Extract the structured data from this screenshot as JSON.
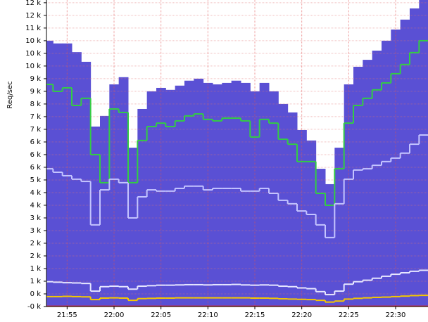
{
  "chart_data": {
    "type": "area",
    "ylabel": "Req/sec",
    "x": [
      1313,
      1314,
      1315,
      1316,
      1317,
      1318,
      1319,
      1320,
      1321,
      1322,
      1323,
      1324,
      1325,
      1326,
      1327,
      1328,
      1329,
      1330,
      1331,
      1332,
      1333,
      1334,
      1335,
      1336,
      1337,
      1338,
      1339,
      1340,
      1341,
      1342,
      1343,
      1344,
      1345,
      1346,
      1347,
      1348,
      1349,
      1350,
      1351,
      1352,
      1353
    ],
    "xlim": [
      1312.8,
      1353.45
    ],
    "xticks": [
      {
        "value": 1315,
        "label": "21:55"
      },
      {
        "value": 1320,
        "label": "22:00"
      },
      {
        "value": 1325,
        "label": "22:05"
      },
      {
        "value": 1330,
        "label": "22:10"
      },
      {
        "value": 1335,
        "label": "22:15"
      },
      {
        "value": 1340,
        "label": "22:20"
      },
      {
        "value": 1345,
        "label": "22:25"
      },
      {
        "value": 1350,
        "label": "22:30"
      }
    ],
    "ylim": [
      -100,
      12250
    ],
    "yticks": [
      {
        "value": -100,
        "label": "-0 k"
      },
      {
        "value": 410,
        "label": "0 k"
      },
      {
        "value": 920,
        "label": "1 k"
      },
      {
        "value": 1430,
        "label": "1 k"
      },
      {
        "value": 1940,
        "label": "2 k"
      },
      {
        "value": 2450,
        "label": "2 k"
      },
      {
        "value": 2960,
        "label": "3 k"
      },
      {
        "value": 3470,
        "label": "3 k"
      },
      {
        "value": 3980,
        "label": "4 k"
      },
      {
        "value": 4490,
        "label": "4 k"
      },
      {
        "value": 5000,
        "label": "5 k"
      },
      {
        "value": 5510,
        "label": "6 k"
      },
      {
        "value": 6020,
        "label": "6 k"
      },
      {
        "value": 6530,
        "label": "6 k"
      },
      {
        "value": 7040,
        "label": "7 k"
      },
      {
        "value": 7550,
        "label": "7 k"
      },
      {
        "value": 8060,
        "label": "8 k"
      },
      {
        "value": 8570,
        "label": "9 k"
      },
      {
        "value": 9080,
        "label": "9 k"
      },
      {
        "value": 9590,
        "label": "10 k"
      },
      {
        "value": 10100,
        "label": "10 k"
      },
      {
        "value": 10610,
        "label": "10 k"
      },
      {
        "value": 11120,
        "label": "11 k"
      },
      {
        "value": 11630,
        "label": "12 k"
      },
      {
        "value": 12140,
        "label": "12 k"
      }
    ],
    "grid": true,
    "series": [
      {
        "kind": "area",
        "color": "#5a50d4",
        "values": [
          10610,
          10500,
          10500,
          10150,
          9760,
          7150,
          7580,
          8850,
          9140,
          6300,
          7860,
          8570,
          8710,
          8630,
          8800,
          9000,
          9080,
          8910,
          8850,
          8910,
          9000,
          8910,
          8570,
          8910,
          8570,
          8060,
          7720,
          7010,
          6590,
          5450,
          4830,
          6300,
          8850,
          9560,
          9840,
          10210,
          10610,
          11060,
          11460,
          11910,
          12250
        ]
      },
      {
        "kind": "line",
        "color": "#33cc44",
        "values": [
          8850,
          8570,
          8710,
          8000,
          8290,
          6020,
          4890,
          7860,
          7720,
          4890,
          6590,
          7150,
          7290,
          7150,
          7380,
          7580,
          7660,
          7440,
          7380,
          7490,
          7490,
          7380,
          6730,
          7440,
          7290,
          6640,
          6440,
          5740,
          5740,
          4460,
          3980,
          5450,
          7290,
          8000,
          8290,
          8630,
          8910,
          9280,
          9650,
          10130,
          10610
        ]
      },
      {
        "kind": "line",
        "color": "#c4c4ff",
        "values": [
          5450,
          5310,
          5170,
          5030,
          4940,
          3190,
          4600,
          5030,
          4890,
          3470,
          4320,
          4600,
          4550,
          4550,
          4660,
          4750,
          4750,
          4600,
          4660,
          4660,
          4660,
          4550,
          4550,
          4660,
          4460,
          4180,
          4040,
          3750,
          3610,
          3190,
          2680,
          4040,
          5030,
          5400,
          5450,
          5590,
          5740,
          5880,
          6080,
          6440,
          6810
        ]
      },
      {
        "kind": "line",
        "color": "#e6e6ff",
        "values": [
          900,
          880,
          860,
          850,
          830,
          520,
          700,
          720,
          700,
          600,
          720,
          740,
          760,
          760,
          770,
          780,
          780,
          770,
          780,
          780,
          790,
          770,
          760,
          770,
          760,
          720,
          700,
          650,
          620,
          500,
          380,
          520,
          800,
          900,
          960,
          1040,
          1120,
          1200,
          1260,
          1320,
          1360
        ]
      },
      {
        "kind": "line",
        "color": "#f5c800",
        "values": [
          300,
          300,
          310,
          300,
          290,
          180,
          240,
          250,
          240,
          150,
          220,
          230,
          240,
          240,
          250,
          250,
          250,
          250,
          250,
          250,
          250,
          250,
          240,
          240,
          230,
          210,
          200,
          190,
          180,
          150,
          80,
          120,
          200,
          230,
          250,
          270,
          280,
          300,
          320,
          340,
          350
        ]
      },
      {
        "kind": "line",
        "color": "#e02020",
        "values": [
          -90,
          -90,
          -90,
          -90,
          -90,
          -90,
          -90,
          -90,
          -90,
          -90,
          -90,
          -90,
          -90,
          -90,
          -90,
          -90,
          -90,
          -90,
          -90,
          -90,
          -90,
          -90,
          -90,
          -90,
          -90,
          -90,
          -90,
          -90,
          -90,
          -90,
          -90,
          -90,
          -90,
          -90,
          -90,
          -90,
          -90,
          -90,
          -90,
          -90,
          -90
        ]
      }
    ]
  }
}
